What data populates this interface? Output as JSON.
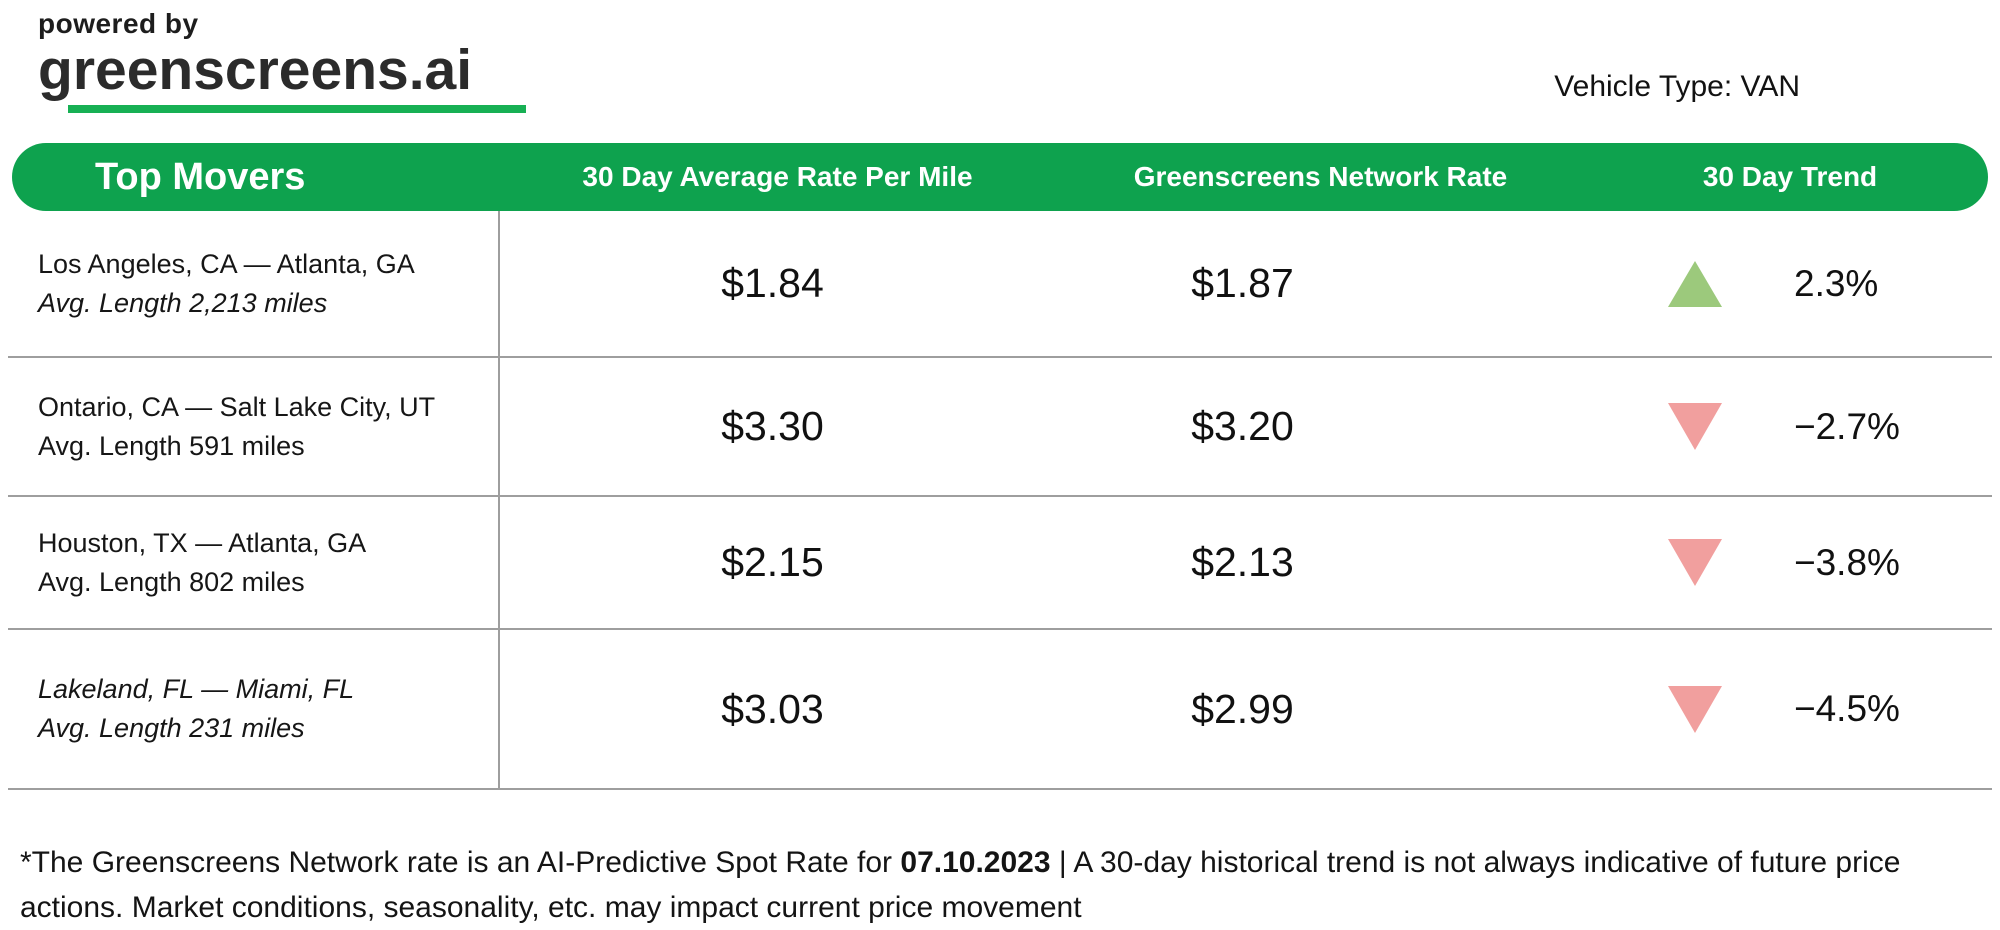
{
  "brand": {
    "powered_by": "powered by",
    "logo_text": "greenscreens.ai"
  },
  "vehicle_type_label": "Vehicle Type: VAN",
  "theme": {
    "brand_green": "#0ea24e",
    "underline_green": "#17b054",
    "trend_up": "#9cc97c",
    "trend_down": "#f19f9e",
    "divider_gray": "#9e9e9e"
  },
  "table": {
    "header": {
      "col_route": "Top Movers",
      "col_avg_rate": "30 Day Average Rate Per Mile",
      "col_network_rate": "Greenscreens Network Rate",
      "col_trend": "30 Day Trend"
    },
    "rows": [
      {
        "route": "Los Angeles, CA — Atlanta, GA",
        "avg_length": "Avg. Length 2,213 miles",
        "avg_rate": "$1.84",
        "network_rate": "$1.87",
        "trend_direction": "up",
        "trend_value": "2.3%"
      },
      {
        "route": "Ontario, CA — Salt Lake City, UT",
        "avg_length": "Avg. Length 591 miles",
        "avg_rate": "$3.30",
        "network_rate": "$3.20",
        "trend_direction": "down",
        "trend_value": "−2.7%"
      },
      {
        "route": "Houston, TX — Atlanta, GA",
        "avg_length": "Avg. Length 802 miles",
        "avg_rate": "$2.15",
        "network_rate": "$2.13",
        "trend_direction": "down",
        "trend_value": "−3.8%"
      },
      {
        "route": "Lakeland, FL — Miami, FL",
        "avg_length": "Avg. Length 231 miles",
        "avg_rate": "$3.03",
        "network_rate": "$2.99",
        "trend_direction": "down",
        "trend_value": "−4.5%"
      }
    ]
  },
  "footnote": {
    "prefix": "*The Greenscreens Network rate is an AI-Predictive Spot Rate for ",
    "date": "07.10.2023",
    "suffix": " | A 30-day historical trend is not always indicative of future price actions. Market conditions, seasonality, etc. may impact current price movement"
  },
  "chart_data": {
    "type": "table",
    "title": "Top Movers",
    "vehicle_type": "VAN",
    "as_of_date": "07.10.2023",
    "columns": [
      "Top Movers",
      "30 Day Average Rate Per Mile",
      "Greenscreens Network Rate",
      "30 Day Trend"
    ],
    "rows": [
      {
        "lane": "Los Angeles, CA — Atlanta, GA",
        "avg_length_miles": 2213,
        "avg_rate_per_mile": 1.84,
        "network_rate": 1.87,
        "trend_pct": 2.3,
        "trend_direction": "up"
      },
      {
        "lane": "Ontario, CA — Salt Lake City, UT",
        "avg_length_miles": 591,
        "avg_rate_per_mile": 3.3,
        "network_rate": 3.2,
        "trend_pct": -2.7,
        "trend_direction": "down"
      },
      {
        "lane": "Houston, TX — Atlanta, GA",
        "avg_length_miles": 802,
        "avg_rate_per_mile": 2.15,
        "network_rate": 2.13,
        "trend_pct": -3.8,
        "trend_direction": "down"
      },
      {
        "lane": "Lakeland, FL — Miami, FL",
        "avg_length_miles": 231,
        "avg_rate_per_mile": 3.03,
        "network_rate": 2.99,
        "trend_pct": -4.5,
        "trend_direction": "down"
      }
    ]
  }
}
